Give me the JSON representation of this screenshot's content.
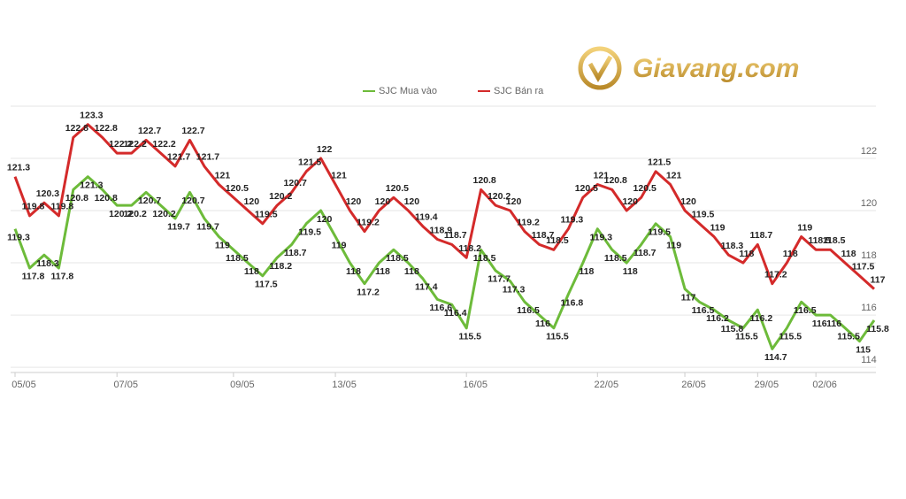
{
  "chart_data": {
    "type": "line",
    "watermark": "Giavang.com",
    "categories": [
      "05/05",
      null,
      null,
      null,
      null,
      null,
      null,
      "07/05",
      null,
      null,
      null,
      null,
      null,
      null,
      null,
      "09/05",
      null,
      null,
      null,
      null,
      null,
      null,
      "13/05",
      null,
      null,
      null,
      null,
      null,
      null,
      null,
      null,
      "16/05",
      null,
      null,
      null,
      null,
      null,
      null,
      null,
      null,
      "22/05",
      null,
      null,
      null,
      null,
      null,
      "26/05",
      null,
      null,
      null,
      null,
      "29/05",
      null,
      null,
      null,
      "02/06",
      null,
      null,
      null,
      null
    ],
    "series": [
      {
        "name": "SJC Mua vào",
        "color": "#6dbb3a",
        "values": [
          119.3,
          117.8,
          118.3,
          117.8,
          120.8,
          121.3,
          120.8,
          120.2,
          120.2,
          120.7,
          120.2,
          119.7,
          120.7,
          119.7,
          119,
          118.5,
          118,
          117.5,
          118.2,
          118.7,
          119.5,
          120,
          119,
          118,
          117.2,
          118,
          118.5,
          118,
          117.4,
          116.6,
          116.4,
          115.5,
          118.5,
          117.7,
          117.3,
          116.5,
          116,
          115.5,
          116.8,
          118,
          119.3,
          118.5,
          118,
          118.7,
          119.5,
          119,
          117,
          116.5,
          116.2,
          115.8,
          115.5,
          116.2,
          114.7,
          115.5,
          116.5,
          116,
          116,
          115.5,
          115,
          115.8
        ]
      },
      {
        "name": "SJC Bán ra",
        "color": "#d42a2a",
        "values": [
          121.3,
          119.8,
          120.3,
          119.8,
          122.8,
          123.3,
          122.8,
          122.2,
          122.2,
          122.7,
          122.2,
          121.7,
          122.7,
          121.7,
          121,
          120.5,
          120,
          119.5,
          120.2,
          120.7,
          121.5,
          122,
          121,
          120,
          119.2,
          120,
          120.5,
          120,
          119.4,
          118.9,
          118.7,
          118.2,
          120.8,
          120.2,
          120,
          119.2,
          118.7,
          118.5,
          119.3,
          120.5,
          121,
          120.8,
          120,
          120.5,
          121.5,
          121,
          120,
          119.5,
          119,
          118.3,
          118,
          118.7,
          117.2,
          118,
          119,
          118.5,
          118.5,
          118,
          117.5,
          117
        ]
      }
    ],
    "ylim": [
      113.8,
      124
    ],
    "yticks": [
      114,
      116,
      118,
      120,
      122
    ],
    "grid": true,
    "legend": "top"
  }
}
